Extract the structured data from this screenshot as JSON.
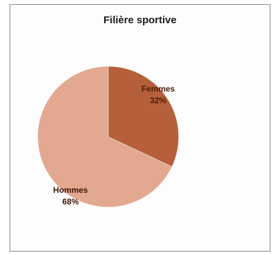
{
  "chart_data": {
    "type": "pie",
    "title": "Filière sportive",
    "slices": [
      {
        "name": "Femmes",
        "value": 32,
        "label": "32%",
        "color": "#b5603a",
        "label_color": "#4a1e0c"
      },
      {
        "name": "Hommes",
        "value": 68,
        "label": "68%",
        "color": "#e3a890",
        "label_color": "#3d1606"
      }
    ],
    "legend": "none"
  }
}
